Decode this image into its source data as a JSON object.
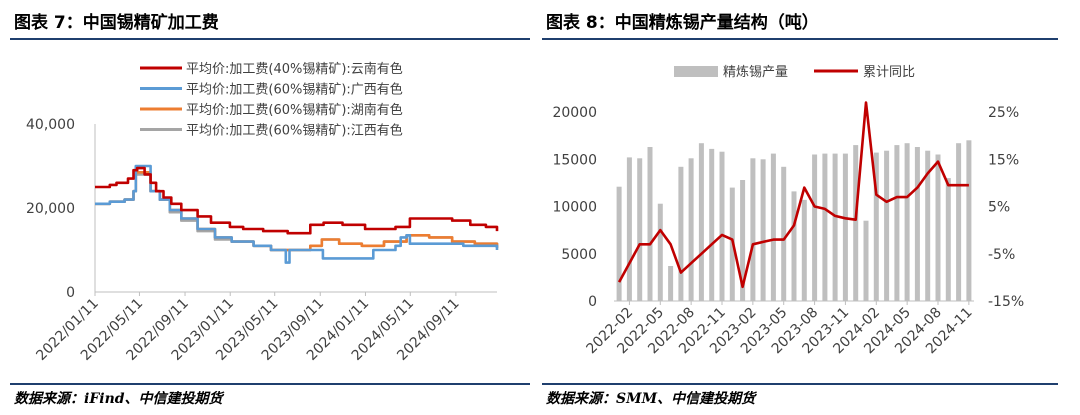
{
  "left": {
    "title": "图表 7：中国锡精矿加工费",
    "source": "数据来源：iFind、中信建投期货",
    "chart_data": {
      "type": "line",
      "y_ticks": [
        "40,000",
        "20,000",
        "0"
      ],
      "ylim": [
        0,
        40000
      ],
      "x_ticks": [
        "2022/01/11",
        "2022/05/11",
        "2022/09/11",
        "2023/01/11",
        "2023/05/11",
        "2023/09/11",
        "2024/01/11",
        "2024/05/11",
        "2024/09/11"
      ],
      "x_range": [
        "2022/01/11",
        "2024/12/31"
      ],
      "grid": false,
      "legend_position": "top-center",
      "series": [
        {
          "name": "平均价:加工费(40%锡精矿):云南有色",
          "color": "#c00000",
          "x": [
            "2022/01/11",
            "2022/02/20",
            "2022/03/10",
            "2022/04/10",
            "2022/04/25",
            "2022/05/05",
            "2022/05/25",
            "2022/06/10",
            "2022/06/25",
            "2022/07/15",
            "2022/08/05",
            "2022/09/01",
            "2022/10/15",
            "2022/11/20",
            "2023/01/10",
            "2023/02/15",
            "2023/04/10",
            "2023/06/15",
            "2023/08/01",
            "2023/08/15",
            "2023/09/20",
            "2023/11/10",
            "2024/01/10",
            "2024/03/01",
            "2024/04/01",
            "2024/05/10",
            "2024/07/01",
            "2024/09/01",
            "2024/10/20",
            "2024/12/01",
            "2024/12/31"
          ],
          "y": [
            25000,
            25500,
            26000,
            27000,
            29000,
            29500,
            28000,
            26000,
            24000,
            22500,
            21000,
            19500,
            18000,
            16500,
            15500,
            15000,
            14500,
            14000,
            14000,
            16000,
            16500,
            16000,
            15000,
            15000,
            15500,
            17500,
            17500,
            17000,
            16000,
            15500,
            14500
          ]
        },
        {
          "name": "平均价:加工费(60%锡精矿):广西有色",
          "color": "#5b9bd5",
          "x": [
            "2022/01/11",
            "2022/02/20",
            "2022/04/01",
            "2022/04/25",
            "2022/05/01",
            "2022/05/20",
            "2022/06/10",
            "2022/07/05",
            "2022/08/01",
            "2022/09/01",
            "2022/10/15",
            "2022/12/01",
            "2023/01/15",
            "2023/03/15",
            "2023/05/01",
            "2023/06/05",
            "2023/06/10",
            "2023/06/20",
            "2023/07/01",
            "2023/08/15",
            "2023/09/15",
            "2023/09/18",
            "2023/10/15",
            "2023/12/01",
            "2024/02/01",
            "2024/04/01",
            "2024/04/15",
            "2024/05/01",
            "2024/05/10",
            "2024/06/01",
            "2024/08/01",
            "2024/10/01",
            "2024/12/31"
          ],
          "y": [
            21000,
            21500,
            22000,
            24000,
            30000,
            30000,
            24000,
            22000,
            19500,
            17500,
            15000,
            13000,
            12000,
            11000,
            10000,
            10000,
            7000,
            10000,
            10000,
            10000,
            10000,
            8000,
            8000,
            8000,
            10000,
            11000,
            13000,
            13500,
            11500,
            11500,
            11500,
            11000,
            10000
          ]
        },
        {
          "name": "平均价:加工费(60%锡精矿):湖南有色",
          "color": "#ed7d31",
          "x": [
            "2022/01/11",
            "2022/02/20",
            "2022/04/01",
            "2022/04/25",
            "2022/05/01",
            "2022/05/20",
            "2022/06/10",
            "2022/07/05",
            "2022/08/01",
            "2022/09/01",
            "2022/10/15",
            "2022/12/01",
            "2023/01/15",
            "2023/03/15",
            "2023/05/01",
            "2023/07/01",
            "2023/08/15",
            "2023/09/15",
            "2023/11/01",
            "2024/01/01",
            "2024/03/01",
            "2024/05/01",
            "2024/07/01",
            "2024/09/01",
            "2024/11/01",
            "2024/12/31"
          ],
          "y": [
            21000,
            21500,
            22000,
            24000,
            28500,
            28500,
            24000,
            22000,
            19500,
            17500,
            15000,
            13000,
            12000,
            11000,
            10000,
            10000,
            11000,
            12500,
            11500,
            11000,
            12000,
            13500,
            13000,
            12000,
            11500,
            10500
          ]
        },
        {
          "name": "平均价:加工费(60%锡精矿):江西有色",
          "color": "#a5a5a5",
          "x": [
            "2022/01/11",
            "2022/02/20",
            "2022/04/01",
            "2022/04/25",
            "2022/05/01",
            "2022/05/20",
            "2022/06/10",
            "2022/07/05",
            "2022/08/01",
            "2022/09/01",
            "2022/10/15",
            "2022/12/01",
            "2023/01/15",
            "2023/03/15",
            "2023/05/01",
            "2023/07/01",
            "2023/08/15",
            "2023/09/15",
            "2023/11/01",
            "2024/01/01",
            "2024/03/01",
            "2024/05/01",
            "2024/07/01",
            "2024/09/01",
            "2024/11/01",
            "2024/12/31"
          ],
          "y": [
            21000,
            21500,
            22000,
            24000,
            28000,
            28000,
            24000,
            22000,
            19000,
            17000,
            14500,
            12500,
            12000,
            11000,
            10000,
            10000,
            11000,
            12500,
            11500,
            11000,
            12000,
            13500,
            13000,
            12000,
            11500,
            10500
          ]
        }
      ]
    }
  },
  "right": {
    "title": "图表 8：中国精炼锡产量结构（吨）",
    "source": "数据来源：SMM、中信建投期货",
    "chart_data": {
      "type": "bar",
      "categories": [
        "2022-01",
        "2022-02",
        "2022-03",
        "2022-04",
        "2022-05",
        "2022-06",
        "2022-07",
        "2022-08",
        "2022-09",
        "2022-10",
        "2022-11",
        "2022-12",
        "2023-01",
        "2023-02",
        "2023-03",
        "2023-04",
        "2023-05",
        "2023-06",
        "2023-07",
        "2023-08",
        "2023-09",
        "2023-10",
        "2023-11",
        "2023-12",
        "2024-01",
        "2024-02",
        "2024-03",
        "2024-04",
        "2024-05",
        "2024-06",
        "2024-07",
        "2024-08",
        "2024-09",
        "2024-10",
        "2024-11"
      ],
      "x_tick_labels": [
        "2022-02",
        "2022-05",
        "2022-08",
        "2022-11",
        "2023-02",
        "2023-05",
        "2023-08",
        "2023-11",
        "2024-02",
        "2024-05",
        "2024-08",
        "2024-11"
      ],
      "y_left_ticks": [
        "20000",
        "15000",
        "10000",
        "5000",
        "0"
      ],
      "y_left_lim": [
        0,
        20000
      ],
      "y_right_ticks": [
        "25%",
        "15%",
        "5%",
        "-5%",
        "-15%"
      ],
      "y_right_lim": [
        -15,
        25
      ],
      "legend_position": "top",
      "series": [
        {
          "name": "精炼锡产量",
          "type": "bar",
          "color": "#bfbfbf",
          "axis": "left",
          "values": [
            12100,
            15200,
            15100,
            16300,
            10300,
            3700,
            14200,
            15100,
            16700,
            16100,
            15800,
            12000,
            12800,
            15100,
            15000,
            15600,
            14200,
            11600,
            10700,
            15500,
            15600,
            15600,
            15600,
            16500,
            8500,
            15700,
            15900,
            16500,
            16700,
            16300,
            15900,
            15500,
            13000,
            16700,
            17000
          ]
        },
        {
          "name": "累计同比",
          "type": "line",
          "color": "#c00000",
          "axis": "right",
          "values": [
            -11,
            -7,
            -3,
            -3,
            0,
            -3,
            -9,
            -7,
            -5,
            -3,
            -1,
            -2,
            -12,
            -3,
            -2.5,
            -2,
            -2,
            1,
            9,
            5,
            4.5,
            3,
            2.5,
            2.2,
            27,
            7.5,
            6,
            7,
            7,
            9,
            12,
            14.5,
            9.5,
            9.5,
            9.5
          ]
        }
      ]
    }
  }
}
